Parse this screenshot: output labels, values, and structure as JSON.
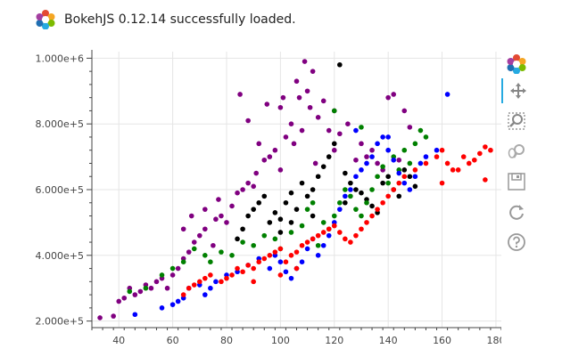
{
  "banner": {
    "text": "BokehJS 0.12.14 successfully loaded.",
    "logo": "bokeh-logo"
  },
  "toolbar": {
    "items": [
      {
        "name": "bokeh-logo",
        "active": false
      },
      {
        "name": "pan-tool",
        "active": true
      },
      {
        "name": "box-zoom-tool",
        "active": false
      },
      {
        "name": "wheel-zoom-tool",
        "active": false
      },
      {
        "name": "save-tool",
        "active": false
      },
      {
        "name": "reset-tool",
        "active": false
      },
      {
        "name": "help-tool",
        "active": false
      }
    ]
  },
  "colors": {
    "purple": "#800080",
    "black": "#000000",
    "green": "#008000",
    "blue": "#0000ff",
    "red": "#ff0000",
    "accent": "#26aae1"
  },
  "chart_data": {
    "type": "scatter",
    "title": "",
    "xlabel": "",
    "ylabel": "",
    "xlim": [
      30,
      182
    ],
    "ylim": [
      180000,
      1020000
    ],
    "grid": true,
    "x_ticks": [
      40,
      60,
      80,
      100,
      120,
      140,
      160,
      180
    ],
    "x_tick_labels": [
      "40",
      "60",
      "80",
      "100",
      "120",
      "140",
      "160",
      "180"
    ],
    "y_ticks": [
      200000,
      400000,
      600000,
      800000,
      1000000
    ],
    "y_tick_labels": [
      "2.000e+5",
      "4.000e+5",
      "6.000e+5",
      "8.000e+5",
      "1.000e+6"
    ],
    "series": [
      {
        "color": "#800080",
        "points": [
          [
            33,
            210000
          ],
          [
            38,
            215000
          ],
          [
            40,
            260000
          ],
          [
            42,
            270000
          ],
          [
            44,
            300000
          ],
          [
            46,
            280000
          ],
          [
            48,
            290000
          ],
          [
            50,
            310000
          ],
          [
            52,
            300000
          ],
          [
            54,
            320000
          ],
          [
            56,
            330000
          ],
          [
            58,
            300000
          ],
          [
            60,
            340000
          ],
          [
            62,
            360000
          ],
          [
            64,
            390000
          ],
          [
            66,
            410000
          ],
          [
            68,
            440000
          ],
          [
            70,
            460000
          ],
          [
            72,
            480000
          ],
          [
            75,
            430000
          ],
          [
            76,
            510000
          ],
          [
            78,
            520000
          ],
          [
            80,
            500000
          ],
          [
            82,
            550000
          ],
          [
            84,
            590000
          ],
          [
            85,
            890000
          ],
          [
            86,
            600000
          ],
          [
            88,
            620000
          ],
          [
            90,
            610000
          ],
          [
            91,
            650000
          ],
          [
            92,
            740000
          ],
          [
            94,
            690000
          ],
          [
            95,
            860000
          ],
          [
            96,
            700000
          ],
          [
            98,
            720000
          ],
          [
            100,
            660000
          ],
          [
            101,
            880000
          ],
          [
            102,
            760000
          ],
          [
            104,
            800000
          ],
          [
            105,
            740000
          ],
          [
            106,
            930000
          ],
          [
            108,
            780000
          ],
          [
            109,
            990000
          ],
          [
            110,
            900000
          ],
          [
            111,
            850000
          ],
          [
            112,
            960000
          ],
          [
            114,
            820000
          ],
          [
            116,
            870000
          ],
          [
            118,
            780000
          ],
          [
            120,
            840000
          ],
          [
            122,
            770000
          ],
          [
            125,
            800000
          ],
          [
            128,
            690000
          ],
          [
            130,
            740000
          ],
          [
            132,
            700000
          ],
          [
            134,
            720000
          ],
          [
            136,
            680000
          ],
          [
            138,
            660000
          ],
          [
            140,
            880000
          ],
          [
            142,
            890000
          ],
          [
            144,
            690000
          ],
          [
            146,
            840000
          ],
          [
            148,
            790000
          ],
          [
            64,
            480000
          ],
          [
            67,
            520000
          ],
          [
            72,
            540000
          ],
          [
            77,
            570000
          ],
          [
            88,
            810000
          ],
          [
            100,
            850000
          ],
          [
            107,
            880000
          ],
          [
            113,
            680000
          ],
          [
            120,
            720000
          ]
        ]
      },
      {
        "color": "#000000",
        "points": [
          [
            84,
            450000
          ],
          [
            86,
            480000
          ],
          [
            88,
            520000
          ],
          [
            90,
            540000
          ],
          [
            92,
            560000
          ],
          [
            94,
            580000
          ],
          [
            96,
            500000
          ],
          [
            98,
            530000
          ],
          [
            100,
            510000
          ],
          [
            102,
            560000
          ],
          [
            104,
            590000
          ],
          [
            106,
            540000
          ],
          [
            108,
            620000
          ],
          [
            110,
            580000
          ],
          [
            112,
            600000
          ],
          [
            114,
            640000
          ],
          [
            116,
            670000
          ],
          [
            118,
            700000
          ],
          [
            120,
            740000
          ],
          [
            122,
            980000
          ],
          [
            124,
            650000
          ],
          [
            126,
            620000
          ],
          [
            128,
            600000
          ],
          [
            130,
            590000
          ],
          [
            132,
            570000
          ],
          [
            134,
            550000
          ],
          [
            136,
            530000
          ],
          [
            138,
            620000
          ],
          [
            140,
            640000
          ],
          [
            142,
            600000
          ],
          [
            144,
            580000
          ],
          [
            146,
            660000
          ],
          [
            148,
            640000
          ],
          [
            150,
            610000
          ],
          [
            100,
            470000
          ],
          [
            104,
            500000
          ],
          [
            112,
            520000
          ],
          [
            124,
            560000
          ]
        ]
      },
      {
        "color": "#008000",
        "points": [
          [
            44,
            290000
          ],
          [
            50,
            300000
          ],
          [
            56,
            340000
          ],
          [
            60,
            360000
          ],
          [
            64,
            380000
          ],
          [
            68,
            420000
          ],
          [
            72,
            400000
          ],
          [
            74,
            380000
          ],
          [
            78,
            410000
          ],
          [
            82,
            400000
          ],
          [
            86,
            440000
          ],
          [
            90,
            430000
          ],
          [
            94,
            460000
          ],
          [
            98,
            450000
          ],
          [
            100,
            420000
          ],
          [
            104,
            470000
          ],
          [
            108,
            490000
          ],
          [
            110,
            540000
          ],
          [
            112,
            560000
          ],
          [
            116,
            500000
          ],
          [
            118,
            480000
          ],
          [
            120,
            520000
          ],
          [
            122,
            560000
          ],
          [
            124,
            600000
          ],
          [
            126,
            580000
          ],
          [
            128,
            540000
          ],
          [
            130,
            520000
          ],
          [
            132,
            560000
          ],
          [
            134,
            600000
          ],
          [
            136,
            640000
          ],
          [
            138,
            670000
          ],
          [
            140,
            620000
          ],
          [
            142,
            700000
          ],
          [
            144,
            660000
          ],
          [
            146,
            720000
          ],
          [
            148,
            680000
          ],
          [
            150,
            740000
          ],
          [
            152,
            780000
          ],
          [
            154,
            760000
          ],
          [
            120,
            840000
          ],
          [
            130,
            790000
          ],
          [
            114,
            430000
          ]
        ]
      },
      {
        "color": "#0000ff",
        "points": [
          [
            46,
            220000
          ],
          [
            56,
            240000
          ],
          [
            60,
            250000
          ],
          [
            62,
            260000
          ],
          [
            64,
            270000
          ],
          [
            66,
            300000
          ],
          [
            70,
            310000
          ],
          [
            72,
            280000
          ],
          [
            74,
            300000
          ],
          [
            76,
            320000
          ],
          [
            80,
            340000
          ],
          [
            84,
            350000
          ],
          [
            88,
            370000
          ],
          [
            92,
            390000
          ],
          [
            96,
            360000
          ],
          [
            98,
            400000
          ],
          [
            100,
            380000
          ],
          [
            102,
            350000
          ],
          [
            104,
            330000
          ],
          [
            106,
            360000
          ],
          [
            108,
            380000
          ],
          [
            110,
            420000
          ],
          [
            112,
            450000
          ],
          [
            114,
            400000
          ],
          [
            116,
            430000
          ],
          [
            118,
            460000
          ],
          [
            120,
            500000
          ],
          [
            122,
            540000
          ],
          [
            124,
            580000
          ],
          [
            126,
            600000
          ],
          [
            128,
            640000
          ],
          [
            130,
            660000
          ],
          [
            132,
            680000
          ],
          [
            134,
            700000
          ],
          [
            136,
            740000
          ],
          [
            138,
            760000
          ],
          [
            140,
            720000
          ],
          [
            142,
            690000
          ],
          [
            144,
            650000
          ],
          [
            146,
            620000
          ],
          [
            148,
            600000
          ],
          [
            150,
            640000
          ],
          [
            152,
            680000
          ],
          [
            154,
            700000
          ],
          [
            158,
            720000
          ],
          [
            162,
            890000
          ],
          [
            128,
            780000
          ],
          [
            140,
            760000
          ]
        ]
      },
      {
        "color": "#ff0000",
        "points": [
          [
            64,
            280000
          ],
          [
            66,
            300000
          ],
          [
            68,
            310000
          ],
          [
            70,
            320000
          ],
          [
            72,
            330000
          ],
          [
            74,
            340000
          ],
          [
            78,
            320000
          ],
          [
            80,
            330000
          ],
          [
            82,
            340000
          ],
          [
            84,
            360000
          ],
          [
            86,
            350000
          ],
          [
            88,
            370000
          ],
          [
            90,
            360000
          ],
          [
            92,
            380000
          ],
          [
            94,
            390000
          ],
          [
            96,
            400000
          ],
          [
            98,
            410000
          ],
          [
            100,
            420000
          ],
          [
            102,
            380000
          ],
          [
            104,
            400000
          ],
          [
            106,
            410000
          ],
          [
            108,
            430000
          ],
          [
            110,
            440000
          ],
          [
            112,
            450000
          ],
          [
            114,
            460000
          ],
          [
            116,
            470000
          ],
          [
            118,
            480000
          ],
          [
            120,
            490000
          ],
          [
            122,
            470000
          ],
          [
            124,
            450000
          ],
          [
            126,
            440000
          ],
          [
            128,
            460000
          ],
          [
            130,
            480000
          ],
          [
            132,
            500000
          ],
          [
            134,
            520000
          ],
          [
            136,
            540000
          ],
          [
            138,
            560000
          ],
          [
            140,
            580000
          ],
          [
            142,
            600000
          ],
          [
            144,
            620000
          ],
          [
            146,
            640000
          ],
          [
            150,
            660000
          ],
          [
            154,
            680000
          ],
          [
            158,
            700000
          ],
          [
            160,
            720000
          ],
          [
            162,
            680000
          ],
          [
            164,
            660000
          ],
          [
            168,
            700000
          ],
          [
            170,
            680000
          ],
          [
            172,
            690000
          ],
          [
            174,
            710000
          ],
          [
            176,
            730000
          ],
          [
            178,
            720000
          ],
          [
            160,
            620000
          ],
          [
            176,
            630000
          ],
          [
            166,
            660000
          ],
          [
            100,
            340000
          ],
          [
            106,
            360000
          ],
          [
            90,
            320000
          ]
        ]
      }
    ]
  }
}
